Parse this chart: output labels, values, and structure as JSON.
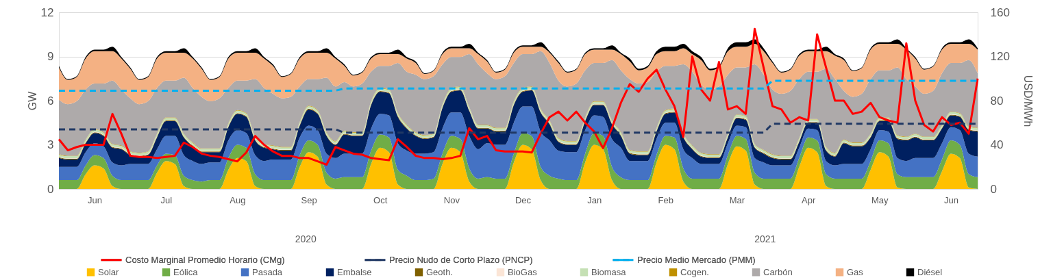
{
  "chart_data": {
    "type": "area",
    "stacked": true,
    "grid": "y",
    "legend": "bottom",
    "ylabel": "GW",
    "y2label": "USD/MWh",
    "ylim": [
      0,
      12
    ],
    "yticks": [
      0,
      3,
      6,
      9,
      12
    ],
    "y2lim": [
      0,
      160
    ],
    "y2ticks": [
      0,
      40,
      80,
      120,
      160
    ],
    "annotations": [
      "2020",
      "2021"
    ],
    "categories": [
      null,
      null,
      null,
      null,
      "Jun",
      null,
      null,
      null,
      null,
      null,
      null,
      null,
      "Jul",
      null,
      null,
      null,
      null,
      null,
      null,
      null,
      "Aug",
      null,
      null,
      null,
      null,
      null,
      null,
      null,
      "Sep",
      null,
      null,
      null,
      null,
      null,
      null,
      null,
      "Oct",
      null,
      null,
      null,
      null,
      null,
      null,
      null,
      "Nov",
      null,
      null,
      null,
      null,
      null,
      null,
      null,
      "Dec",
      null,
      null,
      null,
      null,
      null,
      null,
      null,
      "Jan",
      null,
      null,
      null,
      null,
      null,
      null,
      null,
      "Feb",
      null,
      null,
      null,
      null,
      null,
      null,
      null,
      "Mar",
      null,
      null,
      null,
      null,
      null,
      null,
      null,
      "Apr",
      null,
      null,
      null,
      null,
      null,
      null,
      null,
      "May",
      null,
      null,
      null,
      null,
      null,
      null,
      null,
      "Jun",
      null,
      null,
      null
    ],
    "series": [
      {
        "name": "Costo Marginal Promedio Horario (CMg)",
        "type": "line",
        "axis": "y2",
        "line_style": "solid",
        "color": "#ff0000",
        "values": [
          45,
          35,
          38,
          40,
          40,
          40,
          68,
          50,
          30,
          29,
          29,
          28,
          29,
          30,
          42,
          38,
          32,
          30,
          29,
          27,
          25,
          33,
          48,
          40,
          34,
          30,
          30,
          28,
          28,
          25,
          22,
          38,
          35,
          32,
          31,
          28,
          27,
          26,
          45,
          38,
          30,
          28,
          28,
          27,
          28,
          30,
          55,
          45,
          48,
          35,
          34,
          34,
          34,
          33,
          50,
          65,
          70,
          62,
          70,
          60,
          52,
          37,
          55,
          78,
          95,
          88,
          100,
          108,
          90,
          75,
          47,
          120,
          90,
          80,
          115,
          72,
          75,
          68,
          145,
          110,
          75,
          72,
          60,
          65,
          62,
          140,
          110,
          80,
          80,
          68,
          70,
          78,
          65,
          62,
          60,
          132,
          80,
          58,
          52,
          65,
          58,
          60,
          50,
          100
        ]
      },
      {
        "name": "Precio Nudo de Corto Plazo (PNCP)",
        "type": "line",
        "axis": "y2",
        "line_style": "dashed",
        "color": "#203864",
        "values": [
          54,
          54,
          54,
          54,
          54,
          54,
          54,
          54,
          54,
          54,
          54,
          54,
          54,
          54,
          54,
          54,
          54,
          54,
          54,
          54,
          54,
          54,
          54,
          54,
          54,
          54,
          54,
          54,
          54,
          54,
          54,
          54,
          51,
          51,
          51,
          51,
          51,
          51,
          51,
          51,
          51,
          51,
          51,
          51,
          51,
          51,
          51,
          51,
          51,
          51,
          51,
          51,
          51,
          51,
          51,
          51,
          51,
          51,
          51,
          51,
          51,
          51,
          51,
          51,
          51,
          51,
          51,
          51,
          51,
          51,
          51,
          51,
          51,
          51,
          51,
          51,
          51,
          51,
          51,
          51,
          59,
          59,
          59,
          59,
          59,
          59,
          59,
          59,
          59,
          59,
          59,
          59,
          59,
          59,
          59,
          59,
          59,
          59,
          59,
          59,
          59,
          59,
          59,
          59
        ]
      },
      {
        "name": "Precio Medio Mercado (PMM)",
        "type": "line",
        "axis": "y2",
        "line_style": "dashed",
        "color": "#00b0f0",
        "values": [
          89,
          89,
          89,
          89,
          89,
          89,
          89,
          89,
          89,
          89,
          89,
          89,
          89,
          89,
          89,
          89,
          89,
          89,
          89,
          89,
          89,
          89,
          89,
          89,
          89,
          89,
          89,
          89,
          89,
          89,
          89,
          89,
          91,
          91,
          91,
          91,
          91,
          91,
          91,
          91,
          91,
          91,
          91,
          91,
          91,
          91,
          91,
          91,
          91,
          91,
          91,
          91,
          91,
          91,
          91,
          91,
          91,
          91,
          91,
          91,
          91,
          91,
          91,
          91,
          91,
          91,
          91,
          91,
          91,
          91,
          91,
          91,
          91,
          91,
          91,
          91,
          91,
          91,
          91,
          91,
          98,
          98,
          98,
          98,
          98,
          98,
          98,
          98,
          98,
          98,
          98,
          98,
          98,
          98,
          98,
          98,
          98,
          98,
          98,
          98,
          98,
          98,
          98,
          98
        ]
      },
      {
        "name": "Solar",
        "color": "#ffc000",
        "values": [
          0,
          0,
          0,
          1.0,
          1.6,
          1.4,
          0.2,
          0,
          0,
          0,
          0,
          1.1,
          1.9,
          1.7,
          0.2,
          0,
          0,
          0,
          0,
          1.3,
          2.1,
          1.9,
          0.2,
          0,
          0,
          0,
          0,
          1.5,
          2.5,
          2.2,
          0.3,
          0,
          0,
          0,
          0,
          1.7,
          2.8,
          2.5,
          0.3,
          0,
          0,
          0,
          0,
          1.7,
          2.8,
          2.5,
          0.5,
          0,
          0,
          0,
          0,
          1.8,
          3.0,
          2.7,
          0.6,
          0,
          0,
          0,
          0,
          1.8,
          3.0,
          2.7,
          0.6,
          0,
          0,
          0,
          0,
          1.8,
          3.0,
          2.7,
          0.5,
          0,
          0,
          0,
          0,
          1.7,
          2.9,
          2.6,
          0.3,
          0,
          0,
          0,
          0,
          1.5,
          2.8,
          2.5,
          0.2,
          0,
          0,
          0,
          0,
          1.3,
          2.5,
          2.2,
          0.1,
          0,
          0,
          0,
          0,
          1.2,
          2.4,
          2.1,
          0.1,
          0
        ]
      },
      {
        "name": "Eólica",
        "color": "#70ad47",
        "values": [
          0.6,
          0.6,
          0.6,
          0.6,
          0.7,
          0.7,
          0.7,
          0.6,
          0.6,
          0.6,
          0.6,
          0.5,
          0.5,
          0.6,
          0.7,
          0.6,
          0.5,
          0.6,
          0.6,
          0.8,
          0.9,
          0.9,
          0.8,
          0.6,
          0.6,
          0.6,
          0.6,
          0.8,
          0.8,
          0.8,
          0.8,
          0.7,
          0.8,
          0.8,
          0.8,
          0.9,
          0.9,
          1.0,
          1.0,
          0.9,
          0.6,
          0.6,
          0.7,
          0.7,
          0.8,
          0.9,
          0.9,
          0.7,
          0.8,
          0.7,
          0.7,
          0.6,
          0.8,
          0.9,
          0.9,
          0.9,
          0.7,
          0.6,
          0.6,
          0.6,
          0.8,
          0.9,
          0.9,
          0.8,
          0.6,
          0.6,
          0.6,
          0.5,
          0.6,
          0.8,
          0.9,
          0.7,
          0.7,
          0.7,
          0.7,
          0.6,
          0.7,
          0.8,
          0.8,
          0.7,
          0.7,
          0.7,
          0.7,
          0.6,
          0.7,
          0.8,
          0.8,
          0.7,
          0.7,
          0.7,
          0.7,
          0.6,
          0.8,
          0.9,
          0.9,
          0.8,
          0.8,
          0.8,
          0.8,
          0.8,
          0.9,
          0.9,
          0.9,
          0.8
        ]
      },
      {
        "name": "Pasada",
        "color": "#4472c4",
        "values": [
          0.9,
          0.9,
          0.9,
          0.9,
          0.8,
          0.8,
          0.9,
          1.0,
          1.1,
          1.1,
          1.1,
          1.1,
          1.2,
          1.3,
          1.4,
          1.3,
          1.2,
          1.2,
          1.2,
          1.2,
          1.0,
          1.0,
          1.3,
          1.3,
          1.4,
          1.4,
          1.4,
          1.2,
          1.0,
          1.0,
          1.3,
          1.4,
          1.6,
          1.6,
          1.6,
          1.5,
          1.4,
          1.5,
          1.8,
          1.7,
          1.8,
          1.8,
          1.8,
          1.7,
          1.6,
          1.8,
          2.2,
          2.0,
          2.3,
          2.3,
          2.3,
          2.1,
          1.8,
          2.0,
          2.4,
          2.4,
          1.9,
          1.9,
          1.9,
          1.6,
          1.2,
          1.3,
          1.9,
          2.0,
          1.3,
          1.3,
          1.3,
          1.1,
          0.9,
          1.0,
          1.3,
          1.4,
          1.0,
          1.0,
          1.0,
          0.8,
          0.7,
          0.8,
          1.0,
          1.1,
          0.9,
          0.9,
          0.9,
          0.7,
          0.6,
          0.7,
          0.9,
          0.9,
          1.0,
          1.0,
          1.0,
          0.8,
          0.7,
          0.8,
          1.1,
          1.1,
          1.3,
          1.3,
          1.3,
          1.1,
          0.9,
          1.0,
          1.4,
          1.4
        ]
      },
      {
        "name": "Embalse",
        "color": "#002060",
        "values": [
          0.6,
          0.5,
          0.5,
          0.6,
          0.7,
          0.7,
          1.0,
          1.1,
          0.6,
          0.5,
          0.6,
          0.8,
          1.0,
          1.0,
          1.2,
          1.0,
          0.8,
          0.7,
          0.7,
          0.9,
          1.1,
          1.1,
          1.0,
          0.9,
          0.7,
          0.6,
          0.6,
          0.8,
          1.1,
          1.1,
          1.2,
          0.9,
          1.3,
          1.2,
          1.2,
          1.6,
          1.5,
          1.5,
          1.8,
          1.5,
          1.2,
          1.0,
          1.0,
          1.4,
          1.4,
          1.5,
          1.7,
          1.4,
          1.0,
          0.9,
          0.9,
          1.2,
          1.0,
          1.1,
          1.3,
          1.1,
          0.6,
          0.5,
          0.5,
          0.6,
          0.7,
          0.8,
          1.0,
          0.8,
          0.5,
          0.4,
          0.4,
          0.5,
          0.6,
          0.7,
          0.8,
          0.6,
          0.5,
          0.4,
          0.4,
          0.4,
          0.5,
          0.5,
          0.7,
          0.6,
          0.5,
          0.4,
          0.4,
          0.4,
          0.4,
          0.5,
          0.7,
          0.6,
          1.4,
          1.2,
          1.2,
          0.8,
          0.6,
          0.7,
          1.3,
          1.4,
          1.4,
          1.2,
          1.2,
          1.0,
          0.8,
          0.9,
          1.6,
          1.7
        ]
      },
      {
        "name": "Geoth.",
        "color": "#7f6000",
        "values": [
          0.05,
          0.05,
          0.05,
          0.05,
          0.05,
          0.05,
          0.05,
          0.05,
          0.05,
          0.05,
          0.05,
          0.05,
          0.05,
          0.05,
          0.05,
          0.05,
          0.05,
          0.05,
          0.05,
          0.05,
          0.05,
          0.05,
          0.05,
          0.05,
          0.05,
          0.05,
          0.05,
          0.05,
          0.05,
          0.05,
          0.05,
          0.05,
          0.05,
          0.05,
          0.05,
          0.05,
          0.05,
          0.05,
          0.05,
          0.05,
          0.05,
          0.05,
          0.05,
          0.05,
          0.05,
          0.05,
          0.05,
          0.05,
          0.05,
          0.05,
          0.05,
          0.05,
          0.05,
          0.05,
          0.05,
          0.05,
          0.05,
          0.05,
          0.05,
          0.05,
          0.05,
          0.05,
          0.05,
          0.05,
          0.05,
          0.05,
          0.05,
          0.05,
          0.05,
          0.05,
          0.05,
          0.05,
          0.05,
          0.05,
          0.05,
          0.05,
          0.05,
          0.05,
          0.05,
          0.05,
          0.05,
          0.05,
          0.05,
          0.05,
          0.05,
          0.05,
          0.05,
          0.05,
          0.05,
          0.05,
          0.05,
          0.05,
          0.05,
          0.05,
          0.05,
          0.05,
          0.05,
          0.05,
          0.05,
          0.05,
          0.05,
          0.05,
          0.05,
          0.05
        ]
      },
      {
        "name": "BioGas",
        "color": "#fbe5d6",
        "values": [
          0.03,
          0.03,
          0.03,
          0.03,
          0.03,
          0.03,
          0.03,
          0.03,
          0.03,
          0.03,
          0.03,
          0.03,
          0.03,
          0.03,
          0.03,
          0.03,
          0.03,
          0.03,
          0.03,
          0.03,
          0.03,
          0.03,
          0.03,
          0.03,
          0.03,
          0.03,
          0.03,
          0.03,
          0.03,
          0.03,
          0.03,
          0.03,
          0.03,
          0.03,
          0.03,
          0.03,
          0.03,
          0.03,
          0.03,
          0.03,
          0.03,
          0.03,
          0.03,
          0.03,
          0.03,
          0.03,
          0.03,
          0.03,
          0.03,
          0.03,
          0.03,
          0.03,
          0.03,
          0.03,
          0.03,
          0.03,
          0.03,
          0.03,
          0.03,
          0.03,
          0.03,
          0.03,
          0.03,
          0.03,
          0.03,
          0.03,
          0.03,
          0.03,
          0.03,
          0.03,
          0.03,
          0.03,
          0.03,
          0.03,
          0.03,
          0.03,
          0.03,
          0.03,
          0.03,
          0.03,
          0.03,
          0.03,
          0.03,
          0.03,
          0.03,
          0.03,
          0.03,
          0.03,
          0.03,
          0.03,
          0.03,
          0.03,
          0.03,
          0.03,
          0.03,
          0.03,
          0.03,
          0.03,
          0.03,
          0.03,
          0.03,
          0.03,
          0.03,
          0.03
        ]
      },
      {
        "name": "Biomasa",
        "color": "#c5e0b4",
        "values": [
          0.15,
          0.15,
          0.15,
          0.15,
          0.15,
          0.15,
          0.15,
          0.15,
          0.15,
          0.15,
          0.15,
          0.15,
          0.15,
          0.15,
          0.15,
          0.15,
          0.15,
          0.15,
          0.15,
          0.15,
          0.15,
          0.15,
          0.15,
          0.15,
          0.15,
          0.15,
          0.15,
          0.15,
          0.15,
          0.15,
          0.15,
          0.15,
          0.15,
          0.15,
          0.15,
          0.15,
          0.15,
          0.15,
          0.15,
          0.15,
          0.15,
          0.15,
          0.15,
          0.15,
          0.15,
          0.15,
          0.15,
          0.15,
          0.15,
          0.15,
          0.15,
          0.15,
          0.15,
          0.15,
          0.15,
          0.15,
          0.15,
          0.15,
          0.15,
          0.15,
          0.15,
          0.15,
          0.15,
          0.15,
          0.15,
          0.15,
          0.15,
          0.15,
          0.15,
          0.15,
          0.15,
          0.15,
          0.15,
          0.15,
          0.15,
          0.15,
          0.15,
          0.15,
          0.15,
          0.15,
          0.15,
          0.15,
          0.15,
          0.15,
          0.15,
          0.15,
          0.15,
          0.15,
          0.15,
          0.15,
          0.15,
          0.15,
          0.15,
          0.15,
          0.15,
          0.15,
          0.15,
          0.15,
          0.15,
          0.15,
          0.15,
          0.15,
          0.15,
          0.15
        ]
      },
      {
        "name": "Cogen.",
        "color": "#bf9000",
        "values": [
          0.03,
          0.03,
          0.03,
          0.03,
          0.03,
          0.03,
          0.03,
          0.03,
          0.03,
          0.03,
          0.03,
          0.03,
          0.03,
          0.03,
          0.03,
          0.03,
          0.03,
          0.03,
          0.03,
          0.03,
          0.03,
          0.03,
          0.03,
          0.03,
          0.03,
          0.03,
          0.03,
          0.03,
          0.03,
          0.03,
          0.03,
          0.03,
          0.03,
          0.03,
          0.03,
          0.03,
          0.03,
          0.03,
          0.03,
          0.03,
          0.03,
          0.03,
          0.03,
          0.03,
          0.03,
          0.03,
          0.03,
          0.03,
          0.03,
          0.03,
          0.03,
          0.03,
          0.03,
          0.03,
          0.03,
          0.03,
          0.03,
          0.03,
          0.03,
          0.03,
          0.03,
          0.03,
          0.03,
          0.03,
          0.03,
          0.03,
          0.03,
          0.03,
          0.03,
          0.03,
          0.03,
          0.03,
          0.03,
          0.03,
          0.03,
          0.03,
          0.03,
          0.03,
          0.03,
          0.03,
          0.03,
          0.03,
          0.03,
          0.03,
          0.03,
          0.03,
          0.03,
          0.03,
          0.03,
          0.03,
          0.03,
          0.03,
          0.03,
          0.03,
          0.03,
          0.03,
          0.03,
          0.03,
          0.03,
          0.03,
          0.03,
          0.03,
          0.03,
          0.03
        ]
      },
      {
        "name": "Carbón",
        "color": "#aeaaaa",
        "values": [
          3.7,
          3.5,
          3.7,
          3.4,
          3.1,
          3.3,
          4.3,
          3.8,
          3.6,
          3.3,
          3.4,
          3.1,
          2.5,
          2.5,
          3.8,
          3.7,
          3.5,
          3.2,
          3.4,
          2.4,
          2.0,
          2.2,
          3.9,
          3.8,
          3.5,
          3.3,
          3.4,
          2.4,
          1.8,
          2.1,
          3.7,
          3.7,
          3.3,
          3.1,
          3.3,
          2.0,
          1.5,
          1.6,
          3.4,
          3.6,
          3.9,
          3.8,
          3.9,
          2.7,
          2.1,
          2.0,
          3.6,
          4.1,
          3.5,
          3.3,
          3.5,
          2.6,
          2.3,
          2.2,
          3.9,
          3.9,
          3.9,
          3.7,
          3.9,
          3.2,
          2.6,
          2.6,
          4.1,
          4.2,
          4.8,
          4.6,
          4.7,
          3.8,
          3.0,
          2.9,
          4.7,
          5.0,
          4.6,
          4.4,
          4.6,
          4.0,
          3.2,
          3.3,
          5.4,
          5.1,
          4.4,
          4.2,
          4.4,
          4.0,
          3.2,
          3.2,
          5.3,
          5.0,
          3.3,
          3.1,
          3.3,
          3.7,
          3.2,
          3.2,
          4.6,
          3.9,
          3.2,
          2.9,
          3.1,
          3.5,
          3.3,
          3.4,
          4.5,
          3.7
        ]
      },
      {
        "name": "Gas",
        "color": "#f4b183",
        "values": [
          2.2,
          1.65,
          1.65,
          2.1,
          2.2,
          2.2,
          2.0,
          2.1,
          2.0,
          1.65,
          1.65,
          2.0,
          1.9,
          1.9,
          1.7,
          2.0,
          1.9,
          1.45,
          1.45,
          2.0,
          1.9,
          1.9,
          1.8,
          2.0,
          1.9,
          1.45,
          1.55,
          1.9,
          1.8,
          1.8,
          1.7,
          1.9,
          1.1,
          0.75,
          0.75,
          0.9,
          0.8,
          0.8,
          0.6,
          0.9,
          0.8,
          0.35,
          0.35,
          0.7,
          0.6,
          0.6,
          0.4,
          0.7,
          0.8,
          0.45,
          0.45,
          0.7,
          0.5,
          0.5,
          0.3,
          0.7,
          1.2,
          0.95,
          0.95,
          1.1,
          0.9,
          0.9,
          0.7,
          1.1,
          1.2,
          0.9,
          1.0,
          1.2,
          1.0,
          1.0,
          1.1,
          1.2,
          1.7,
          1.3,
          1.3,
          1.6,
          1.4,
          1.4,
          1.4,
          1.6,
          1.8,
          1.45,
          1.45,
          1.6,
          1.4,
          1.4,
          1.2,
          1.6,
          2.1,
          1.75,
          1.75,
          2.0,
          1.8,
          1.8,
          1.6,
          2.0,
          1.9,
          1.65,
          1.65,
          1.6,
          1.3,
          1.3,
          1.1,
          1.6
        ]
      },
      {
        "name": "Diésel",
        "color": "#000000",
        "values": [
          0.1,
          0.05,
          0.05,
          0.1,
          0.1,
          0.1,
          0.3,
          0.1,
          0.1,
          0.05,
          0.05,
          0.1,
          0.1,
          0.1,
          0.3,
          0.1,
          0.1,
          0.05,
          0.05,
          0.1,
          0.1,
          0.1,
          0.3,
          0.1,
          0.1,
          0.05,
          0.05,
          0.1,
          0.1,
          0.1,
          0.3,
          0.1,
          0.1,
          0.05,
          0.05,
          0.1,
          0.1,
          0.1,
          0.3,
          0.1,
          0.1,
          0.05,
          0.05,
          0.1,
          0.1,
          0.1,
          0.3,
          0.1,
          0.1,
          0.05,
          0.05,
          0.1,
          0.1,
          0.1,
          0.3,
          0.1,
          0.1,
          0.05,
          0.05,
          0.1,
          0.1,
          0.1,
          0.3,
          0.1,
          0.2,
          0.1,
          0.1,
          0.2,
          0.3,
          0.3,
          0.3,
          0.2,
          0.2,
          0.1,
          0.1,
          0.2,
          0.3,
          0.3,
          0.3,
          0.2,
          0.1,
          0.05,
          0.05,
          0.1,
          0.1,
          0.1,
          0.3,
          0.1,
          0.1,
          0.05,
          0.05,
          0.1,
          0.1,
          0.1,
          0.3,
          0.1,
          0.1,
          0.05,
          0.05,
          0.1,
          0.1,
          0.1,
          0.3,
          0.1
        ]
      }
    ]
  }
}
